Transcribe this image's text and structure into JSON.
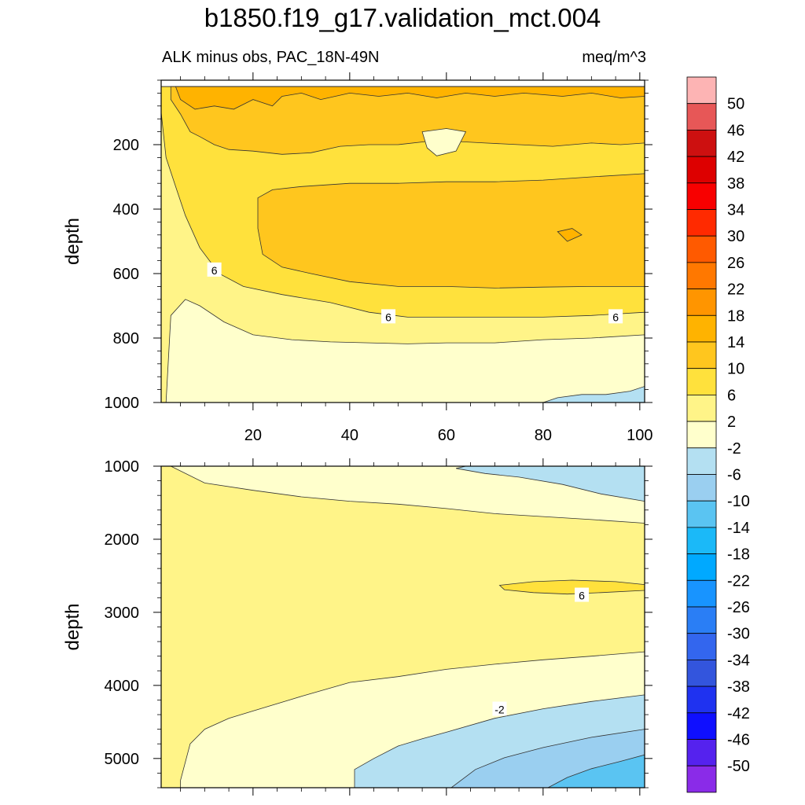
{
  "header": {
    "title": "b1850.f19_g17.validation_mct.004",
    "left_subtitle": "ALK minus obs, PAC_18N-49N",
    "right_subtitle": "meq/m^3"
  },
  "chart_data": [
    {
      "type": "heatmap",
      "subtype": "filled-contour",
      "panel": "upper",
      "xlabel": "",
      "ylabel": "depth",
      "xlim": [
        1,
        101
      ],
      "ylim": [
        1000,
        0
      ],
      "x_ticks": [
        20,
        40,
        60,
        80,
        100
      ],
      "y_ticks": [
        200,
        400,
        600,
        800,
        1000
      ],
      "contour_labels": [
        {
          "text": "6",
          "x": 12,
          "y": 590
        },
        {
          "text": "6",
          "x": 48,
          "y": 735
        },
        {
          "text": "6",
          "x": 95,
          "y": 735
        }
      ],
      "regions": [
        {
          "level": 2,
          "points": [
            [
              1,
              1000
            ],
            [
              14,
              1000
            ],
            [
              101,
              1000
            ],
            [
              101,
              20
            ],
            [
              1,
              20
            ]
          ]
        },
        {
          "level": -2,
          "points": [
            [
              2,
              1000
            ],
            [
              3,
              730
            ],
            [
              6,
              680
            ],
            [
              9,
              700
            ],
            [
              14,
              750
            ],
            [
              20,
              790
            ],
            [
              28,
              805
            ],
            [
              36,
              812
            ],
            [
              44,
              815
            ],
            [
              52,
              818
            ],
            [
              60,
              815
            ],
            [
              70,
              815
            ],
            [
              80,
              805
            ],
            [
              90,
              800
            ],
            [
              101,
              790
            ],
            [
              101,
              1000
            ]
          ]
        },
        {
          "level": 6,
          "points": [
            [
              1,
              20
            ],
            [
              1,
              100
            ],
            [
              2,
              240
            ],
            [
              4,
              330
            ],
            [
              6,
              420
            ],
            [
              9,
              520
            ],
            [
              13,
              600
            ],
            [
              18,
              640
            ],
            [
              26,
              665
            ],
            [
              36,
              690
            ],
            [
              44,
              720
            ],
            [
              52,
              735
            ],
            [
              60,
              735
            ],
            [
              70,
              735
            ],
            [
              80,
              735
            ],
            [
              90,
              730
            ],
            [
              101,
              720
            ],
            [
              101,
              20
            ]
          ]
        },
        {
          "level": 10,
          "points": [
            [
              21,
              365
            ],
            [
              24,
              340
            ],
            [
              30,
              330
            ],
            [
              40,
              320
            ],
            [
              50,
              320
            ],
            [
              60,
              315
            ],
            [
              70,
              315
            ],
            [
              80,
              310
            ],
            [
              90,
              300
            ],
            [
              101,
              290
            ],
            [
              101,
              640
            ],
            [
              90,
              640
            ],
            [
              80,
              642
            ],
            [
              70,
              645
            ],
            [
              60,
              640
            ],
            [
              50,
              640
            ],
            [
              40,
              625
            ],
            [
              32,
              600
            ],
            [
              26,
              580
            ],
            [
              22,
              540
            ],
            [
              21,
              460
            ]
          ]
        },
        {
          "level": 10,
          "points": [
            [
              3,
              20
            ],
            [
              3,
              60
            ],
            [
              5,
              105
            ],
            [
              7,
              160
            ],
            [
              9,
              175
            ],
            [
              12,
              200
            ],
            [
              15,
              215
            ],
            [
              20,
              220
            ],
            [
              26,
              230
            ],
            [
              32,
              225
            ],
            [
              38,
              205
            ],
            [
              44,
              200
            ],
            [
              50,
              200
            ],
            [
              56,
              190
            ],
            [
              62,
              190
            ],
            [
              68,
              195
            ],
            [
              75,
              200
            ],
            [
              82,
              205
            ],
            [
              90,
              195
            ],
            [
              96,
              200
            ],
            [
              101,
              195
            ],
            [
              101,
              20
            ]
          ]
        },
        {
          "level": 14,
          "points": [
            [
              4,
              20
            ],
            [
              5,
              60
            ],
            [
              8,
              90
            ],
            [
              12,
              80
            ],
            [
              16,
              90
            ],
            [
              20,
              60
            ],
            [
              24,
              80
            ],
            [
              26,
              50
            ],
            [
              30,
              40
            ],
            [
              34,
              60
            ],
            [
              40,
              40
            ],
            [
              46,
              50
            ],
            [
              52,
              40
            ],
            [
              58,
              55
            ],
            [
              64,
              40
            ],
            [
              70,
              50
            ],
            [
              76,
              40
            ],
            [
              84,
              50
            ],
            [
              90,
              40
            ],
            [
              96,
              55
            ],
            [
              101,
              50
            ],
            [
              101,
              20
            ]
          ]
        },
        {
          "level": -2,
          "points": [
            [
              55,
              160
            ],
            [
              60,
              150
            ],
            [
              64,
              160
            ],
            [
              62,
              220
            ],
            [
              58,
              235
            ],
            [
              56,
              210
            ]
          ]
        },
        {
          "level": 14,
          "points": [
            [
              83,
              470
            ],
            [
              86,
              460
            ],
            [
              88,
              480
            ],
            [
              85,
              500
            ]
          ]
        },
        {
          "level": -6,
          "points": [
            [
              80,
              1000
            ],
            [
              83,
              985
            ],
            [
              88,
              975
            ],
            [
              93,
              975
            ],
            [
              98,
              965
            ],
            [
              101,
              950
            ],
            [
              101,
              1000
            ]
          ]
        }
      ]
    },
    {
      "type": "heatmap",
      "subtype": "filled-contour",
      "panel": "lower",
      "xlabel": "",
      "ylabel": "depth",
      "xlim": [
        1,
        101
      ],
      "ylim": [
        5400,
        1000
      ],
      "x_ticks": [
        20,
        40,
        60,
        80,
        100
      ],
      "y_ticks": [
        1000,
        2000,
        3000,
        4000,
        5000
      ],
      "contour_labels": [
        {
          "text": "6",
          "x": 88,
          "y": 2770
        },
        {
          "text": "-2",
          "x": 71,
          "y": 4330
        }
      ],
      "regions": [
        {
          "level": 2,
          "points": [
            [
              1,
              1000
            ],
            [
              101,
              1000
            ],
            [
              101,
              5400
            ],
            [
              1,
              5400
            ]
          ]
        },
        {
          "level": -2,
          "points": [
            [
              3,
              1000
            ],
            [
              10,
              1230
            ],
            [
              20,
              1330
            ],
            [
              30,
              1420
            ],
            [
              40,
              1480
            ],
            [
              50,
              1520
            ],
            [
              60,
              1580
            ],
            [
              70,
              1650
            ],
            [
              80,
              1690
            ],
            [
              90,
              1730
            ],
            [
              101,
              1780
            ],
            [
              101,
              1000
            ]
          ]
        },
        {
          "level": -6,
          "points": [
            [
              62,
              1030
            ],
            [
              64,
              1000
            ],
            [
              101,
              1000
            ],
            [
              101,
              1480
            ],
            [
              92,
              1380
            ],
            [
              84,
              1250
            ],
            [
              75,
              1150
            ],
            [
              68,
              1100
            ]
          ]
        },
        {
          "level": -2,
          "points": [
            [
              5,
              5400
            ],
            [
              5,
              5300
            ],
            [
              7,
              4800
            ],
            [
              10,
              4600
            ],
            [
              15,
              4450
            ],
            [
              20,
              4350
            ],
            [
              30,
              4150
            ],
            [
              40,
              3960
            ],
            [
              50,
              3880
            ],
            [
              60,
              3780
            ],
            [
              70,
              3710
            ],
            [
              80,
              3650
            ],
            [
              90,
              3600
            ],
            [
              101,
              3540
            ],
            [
              101,
              5400
            ]
          ]
        },
        {
          "level": -6,
          "points": [
            [
              41,
              5400
            ],
            [
              41,
              5150
            ],
            [
              45,
              5000
            ],
            [
              50,
              4830
            ],
            [
              55,
              4730
            ],
            [
              60,
              4640
            ],
            [
              70,
              4450
            ],
            [
              80,
              4320
            ],
            [
              90,
              4220
            ],
            [
              101,
              4130
            ],
            [
              101,
              5400
            ]
          ]
        },
        {
          "level": -10,
          "points": [
            [
              61,
              5400
            ],
            [
              66,
              5150
            ],
            [
              72,
              4990
            ],
            [
              80,
              4850
            ],
            [
              90,
              4710
            ],
            [
              101,
              4600
            ],
            [
              101,
              5400
            ]
          ]
        },
        {
          "level": -14,
          "points": [
            [
              81,
              5400
            ],
            [
              85,
              5260
            ],
            [
              90,
              5140
            ],
            [
              96,
              5040
            ],
            [
              101,
              4950
            ],
            [
              101,
              5400
            ]
          ]
        },
        {
          "level": 6,
          "points": [
            [
              71,
              2630
            ],
            [
              78,
              2580
            ],
            [
              86,
              2560
            ],
            [
              95,
              2580
            ],
            [
              101,
              2620
            ],
            [
              101,
              2700
            ],
            [
              92,
              2730
            ],
            [
              85,
              2750
            ],
            [
              78,
              2730
            ],
            [
              72,
              2690
            ]
          ]
        }
      ]
    }
  ],
  "colorbar": {
    "labels": [
      "50",
      "46",
      "42",
      "38",
      "34",
      "30",
      "26",
      "22",
      "18",
      "14",
      "10",
      "6",
      "2",
      "-2",
      "-6",
      "-10",
      "-14",
      "-18",
      "-22",
      "-26",
      "-30",
      "-34",
      "-38",
      "-42",
      "-46",
      "-50"
    ],
    "colors": [
      "#fdb4b4",
      "#e75757",
      "#cd1010",
      "#dd0000",
      "#f80000",
      "#ff2a00",
      "#ff5a00",
      "#ff7800",
      "#ff9500",
      "#ffb300",
      "#ffc61e",
      "#ffe13c",
      "#fff488",
      "#ffffcc",
      "#b4e0f2",
      "#9acff0",
      "#5ac4f2",
      "#1bb9f8",
      "#00a9ff",
      "#1894ff",
      "#2a7ef5",
      "#3366ee",
      "#3355dd",
      "#1f32f0",
      "#0f0fff",
      "#5522ee",
      "#8a2be8"
    ],
    "level_colors": {
      "-14": "#5ac4f2",
      "-10": "#9acff0",
      "-6": "#b4e0f2",
      "-2": "#ffffcc",
      "2": "#fff488",
      "6": "#ffe13c",
      "10": "#ffc61e",
      "14": "#ffb300"
    }
  }
}
